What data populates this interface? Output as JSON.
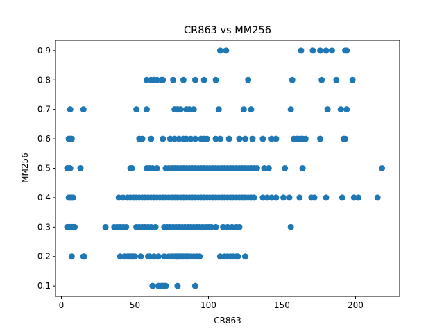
{
  "chart_data": {
    "type": "scatter",
    "title": "CR863 vs MM256",
    "xlabel": "CR863",
    "ylabel": "MM256",
    "xlim": [
      -4,
      230
    ],
    "ylim": [
      0.065,
      0.935
    ],
    "x_ticks": [
      0,
      50,
      100,
      150,
      200
    ],
    "y_ticks": [
      0.1,
      0.2,
      0.3,
      0.4,
      0.5,
      0.6,
      0.7,
      0.8,
      0.9
    ],
    "x_tick_labels": [
      "0",
      "50",
      "100",
      "150",
      "200"
    ],
    "y_tick_labels": [
      "0.1",
      "0.2",
      "0.3",
      "0.4",
      "0.5",
      "0.6",
      "0.7",
      "0.8",
      "0.9"
    ],
    "grid": false,
    "marker_color": "#1f77b4",
    "series": [
      {
        "points": [
          [
            62,
            0.1
          ],
          [
            66,
            0.1
          ],
          [
            68,
            0.1
          ],
          [
            69,
            0.1
          ],
          [
            70,
            0.1
          ],
          [
            71,
            0.1
          ],
          [
            79,
            0.1
          ],
          [
            91,
            0.1
          ],
          [
            7,
            0.2
          ],
          [
            15,
            0.2
          ],
          [
            15.5,
            0.2
          ],
          [
            40,
            0.2
          ],
          [
            43,
            0.2
          ],
          [
            45,
            0.2
          ],
          [
            46,
            0.2
          ],
          [
            47,
            0.2
          ],
          [
            48,
            0.2
          ],
          [
            49,
            0.2
          ],
          [
            50,
            0.2
          ],
          [
            54,
            0.2
          ],
          [
            59,
            0.2
          ],
          [
            60,
            0.2
          ],
          [
            63,
            0.2
          ],
          [
            66,
            0.2
          ],
          [
            70,
            0.2
          ],
          [
            73,
            0.2
          ],
          [
            75,
            0.2
          ],
          [
            77,
            0.2
          ],
          [
            78,
            0.2
          ],
          [
            79,
            0.2
          ],
          [
            80,
            0.2
          ],
          [
            81,
            0.2
          ],
          [
            82,
            0.2
          ],
          [
            83,
            0.2
          ],
          [
            84,
            0.2
          ],
          [
            85,
            0.2
          ],
          [
            86,
            0.2
          ],
          [
            88,
            0.2
          ],
          [
            90,
            0.2
          ],
          [
            92,
            0.2
          ],
          [
            94,
            0.2
          ],
          [
            108,
            0.2
          ],
          [
            111,
            0.2
          ],
          [
            113,
            0.2
          ],
          [
            115,
            0.2
          ],
          [
            117,
            0.2
          ],
          [
            119,
            0.2
          ],
          [
            120,
            0.2
          ],
          [
            125,
            0.2
          ],
          [
            4,
            0.3
          ],
          [
            5,
            0.3
          ],
          [
            6,
            0.3
          ],
          [
            7,
            0.3
          ],
          [
            8,
            0.3
          ],
          [
            9,
            0.3
          ],
          [
            30,
            0.3
          ],
          [
            36,
            0.3
          ],
          [
            38,
            0.3
          ],
          [
            40,
            0.3
          ],
          [
            42,
            0.3
          ],
          [
            44,
            0.3
          ],
          [
            51,
            0.3
          ],
          [
            53,
            0.3
          ],
          [
            55,
            0.3
          ],
          [
            57,
            0.3
          ],
          [
            59,
            0.3
          ],
          [
            61,
            0.3
          ],
          [
            64,
            0.3
          ],
          [
            70,
            0.3
          ],
          [
            72,
            0.3
          ],
          [
            74,
            0.3
          ],
          [
            76,
            0.3
          ],
          [
            78,
            0.3
          ],
          [
            80,
            0.3
          ],
          [
            82,
            0.3
          ],
          [
            84,
            0.3
          ],
          [
            86,
            0.3
          ],
          [
            88,
            0.3
          ],
          [
            90,
            0.3
          ],
          [
            92,
            0.3
          ],
          [
            94,
            0.3
          ],
          [
            96,
            0.3
          ],
          [
            98,
            0.3
          ],
          [
            100,
            0.3
          ],
          [
            102,
            0.3
          ],
          [
            105,
            0.3
          ],
          [
            110,
            0.3
          ],
          [
            113,
            0.3
          ],
          [
            116,
            0.3
          ],
          [
            119,
            0.3
          ],
          [
            121,
            0.3
          ],
          [
            156,
            0.3
          ],
          [
            5,
            0.4
          ],
          [
            6,
            0.4
          ],
          [
            7,
            0.4
          ],
          [
            8,
            0.4
          ],
          [
            39,
            0.4
          ],
          [
            42,
            0.4
          ],
          [
            45,
            0.4
          ],
          [
            47,
            0.4
          ],
          [
            49,
            0.4
          ],
          [
            51,
            0.4
          ],
          [
            53,
            0.4
          ],
          [
            55,
            0.4
          ],
          [
            57,
            0.4
          ],
          [
            59,
            0.4
          ],
          [
            61,
            0.4
          ],
          [
            63,
            0.4
          ],
          [
            65,
            0.4
          ],
          [
            67,
            0.4
          ],
          [
            69,
            0.4
          ],
          [
            71,
            0.4
          ],
          [
            73,
            0.4
          ],
          [
            75,
            0.4
          ],
          [
            77,
            0.4
          ],
          [
            79,
            0.4
          ],
          [
            81,
            0.4
          ],
          [
            83,
            0.4
          ],
          [
            85,
            0.4
          ],
          [
            87,
            0.4
          ],
          [
            89,
            0.4
          ],
          [
            91,
            0.4
          ],
          [
            93,
            0.4
          ],
          [
            95,
            0.4
          ],
          [
            97,
            0.4
          ],
          [
            99,
            0.4
          ],
          [
            101,
            0.4
          ],
          [
            103,
            0.4
          ],
          [
            105,
            0.4
          ],
          [
            107,
            0.4
          ],
          [
            109,
            0.4
          ],
          [
            111,
            0.4
          ],
          [
            113,
            0.4
          ],
          [
            115,
            0.4
          ],
          [
            117,
            0.4
          ],
          [
            119,
            0.4
          ],
          [
            121,
            0.4
          ],
          [
            123,
            0.4
          ],
          [
            125,
            0.4
          ],
          [
            127,
            0.4
          ],
          [
            129,
            0.4
          ],
          [
            131,
            0.4
          ],
          [
            137,
            0.4
          ],
          [
            140,
            0.4
          ],
          [
            143,
            0.4
          ],
          [
            146,
            0.4
          ],
          [
            151,
            0.4
          ],
          [
            155,
            0.4
          ],
          [
            162,
            0.4
          ],
          [
            170,
            0.4
          ],
          [
            172,
            0.4
          ],
          [
            180,
            0.4
          ],
          [
            191,
            0.4
          ],
          [
            199,
            0.4
          ],
          [
            202,
            0.4
          ],
          [
            215,
            0.4
          ],
          [
            4,
            0.5
          ],
          [
            5,
            0.5
          ],
          [
            6,
            0.5
          ],
          [
            13,
            0.5
          ],
          [
            47,
            0.5
          ],
          [
            48,
            0.5
          ],
          [
            58,
            0.5
          ],
          [
            60,
            0.5
          ],
          [
            62,
            0.5
          ],
          [
            65,
            0.5
          ],
          [
            71,
            0.5
          ],
          [
            73,
            0.5
          ],
          [
            75,
            0.5
          ],
          [
            77,
            0.5
          ],
          [
            79,
            0.5
          ],
          [
            81,
            0.5
          ],
          [
            83,
            0.5
          ],
          [
            85,
            0.5
          ],
          [
            87,
            0.5
          ],
          [
            89,
            0.5
          ],
          [
            91,
            0.5
          ],
          [
            93,
            0.5
          ],
          [
            95,
            0.5
          ],
          [
            97,
            0.5
          ],
          [
            99,
            0.5
          ],
          [
            101,
            0.5
          ],
          [
            103,
            0.5
          ],
          [
            105,
            0.5
          ],
          [
            107,
            0.5
          ],
          [
            109,
            0.5
          ],
          [
            111,
            0.5
          ],
          [
            113,
            0.5
          ],
          [
            115,
            0.5
          ],
          [
            117,
            0.5
          ],
          [
            119,
            0.5
          ],
          [
            121,
            0.5
          ],
          [
            123,
            0.5
          ],
          [
            125,
            0.5
          ],
          [
            127,
            0.5
          ],
          [
            129,
            0.5
          ],
          [
            131,
            0.5
          ],
          [
            133,
            0.5
          ],
          [
            138,
            0.5
          ],
          [
            141,
            0.5
          ],
          [
            152,
            0.5
          ],
          [
            164,
            0.5
          ],
          [
            218,
            0.5
          ],
          [
            5,
            0.6
          ],
          [
            6,
            0.6
          ],
          [
            7,
            0.6
          ],
          [
            53,
            0.6
          ],
          [
            55,
            0.6
          ],
          [
            61,
            0.6
          ],
          [
            69,
            0.6
          ],
          [
            74,
            0.6
          ],
          [
            77,
            0.6
          ],
          [
            80,
            0.6
          ],
          [
            83,
            0.6
          ],
          [
            85,
            0.6
          ],
          [
            88,
            0.6
          ],
          [
            91,
            0.6
          ],
          [
            95,
            0.6
          ],
          [
            97,
            0.6
          ],
          [
            99,
            0.6
          ],
          [
            105,
            0.6
          ],
          [
            108,
            0.6
          ],
          [
            114,
            0.6
          ],
          [
            121,
            0.6
          ],
          [
            125,
            0.6
          ],
          [
            130,
            0.6
          ],
          [
            137,
            0.6
          ],
          [
            143,
            0.6
          ],
          [
            146,
            0.6
          ],
          [
            158,
            0.6
          ],
          [
            160,
            0.6
          ],
          [
            161,
            0.6
          ],
          [
            163,
            0.6
          ],
          [
            164,
            0.6
          ],
          [
            166,
            0.6
          ],
          [
            176,
            0.6
          ],
          [
            192,
            0.6
          ],
          [
            193,
            0.6
          ],
          [
            6,
            0.7
          ],
          [
            15,
            0.7
          ],
          [
            51,
            0.7
          ],
          [
            58,
            0.7
          ],
          [
            77,
            0.7
          ],
          [
            79,
            0.7
          ],
          [
            81,
            0.7
          ],
          [
            85,
            0.7
          ],
          [
            87,
            0.7
          ],
          [
            90,
            0.7
          ],
          [
            107,
            0.7
          ],
          [
            124,
            0.7
          ],
          [
            129,
            0.7
          ],
          [
            156,
            0.7
          ],
          [
            181,
            0.7
          ],
          [
            190,
            0.7
          ],
          [
            194,
            0.7
          ],
          [
            58,
            0.8
          ],
          [
            61,
            0.8
          ],
          [
            63,
            0.8
          ],
          [
            65,
            0.8
          ],
          [
            68,
            0.8
          ],
          [
            69,
            0.8
          ],
          [
            76,
            0.8
          ],
          [
            83,
            0.8
          ],
          [
            91,
            0.8
          ],
          [
            97,
            0.8
          ],
          [
            105,
            0.8
          ],
          [
            127,
            0.8
          ],
          [
            157,
            0.8
          ],
          [
            177,
            0.8
          ],
          [
            187,
            0.8
          ],
          [
            198,
            0.8
          ],
          [
            108,
            0.9
          ],
          [
            112,
            0.9
          ],
          [
            163,
            0.9
          ],
          [
            171,
            0.9
          ],
          [
            176,
            0.9
          ],
          [
            180,
            0.9
          ],
          [
            184,
            0.9
          ],
          [
            193,
            0.9
          ],
          [
            194,
            0.9
          ]
        ]
      }
    ]
  }
}
